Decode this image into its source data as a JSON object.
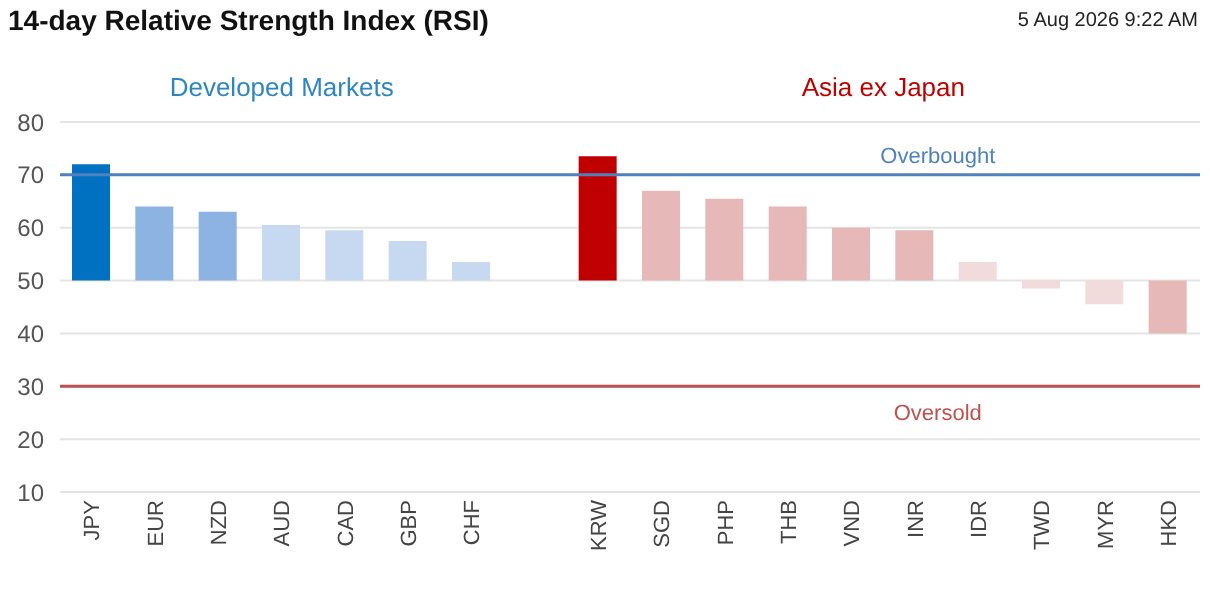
{
  "chart_data": {
    "type": "bar",
    "title": "14-day Relative Strength Index (RSI)",
    "subtitle": "5 Aug 2026 9:22 AM",
    "categories": [
      "JPY",
      "EUR",
      "NZD",
      "AUD",
      "CAD",
      "GBP",
      "CHF",
      null,
      "KRW",
      "SGD",
      "PHP",
      "THB",
      "VND",
      "INR",
      "IDR",
      "TWD",
      "MYR",
      "HKD"
    ],
    "values": [
      22,
      14,
      13,
      10.5,
      9.5,
      7.5,
      3.5,
      null,
      23.5,
      17,
      15.5,
      14,
      10,
      9.5,
      3.5,
      -1.5,
      -4.5,
      -10
    ],
    "base": [
      50,
      50,
      50,
      50,
      50,
      50,
      50,
      null,
      50,
      50,
      50,
      50,
      50,
      50,
      50,
      50,
      50,
      50
    ],
    "colors": [
      "#0070c0",
      "#8db3e2",
      "#8db3e2",
      "#c6d9f1",
      "#c6d9f1",
      "#c6d9f1",
      "#c6d9f1",
      null,
      "#c00000",
      "#e6b8b7",
      "#e6b8b7",
      "#e6b8b7",
      "#e6b8b7",
      "#e6b8b7",
      "#f2dcdb",
      "#f2dcdb",
      "#f2dcdb",
      "#e6b8b7"
    ],
    "ylim": [
      10,
      80
    ],
    "yticks": [
      10,
      20,
      30,
      40,
      50,
      60,
      70,
      80
    ],
    "grid": "y",
    "ref_lines": [
      {
        "axis": "y",
        "value": 70,
        "label": "Overbought",
        "color": "#4f81bd"
      },
      {
        "axis": "y",
        "value": 30,
        "label": "Oversold",
        "color": "#c0504d"
      }
    ],
    "annotations": [
      "Developed Markets",
      "Asia ex Japan"
    ]
  }
}
